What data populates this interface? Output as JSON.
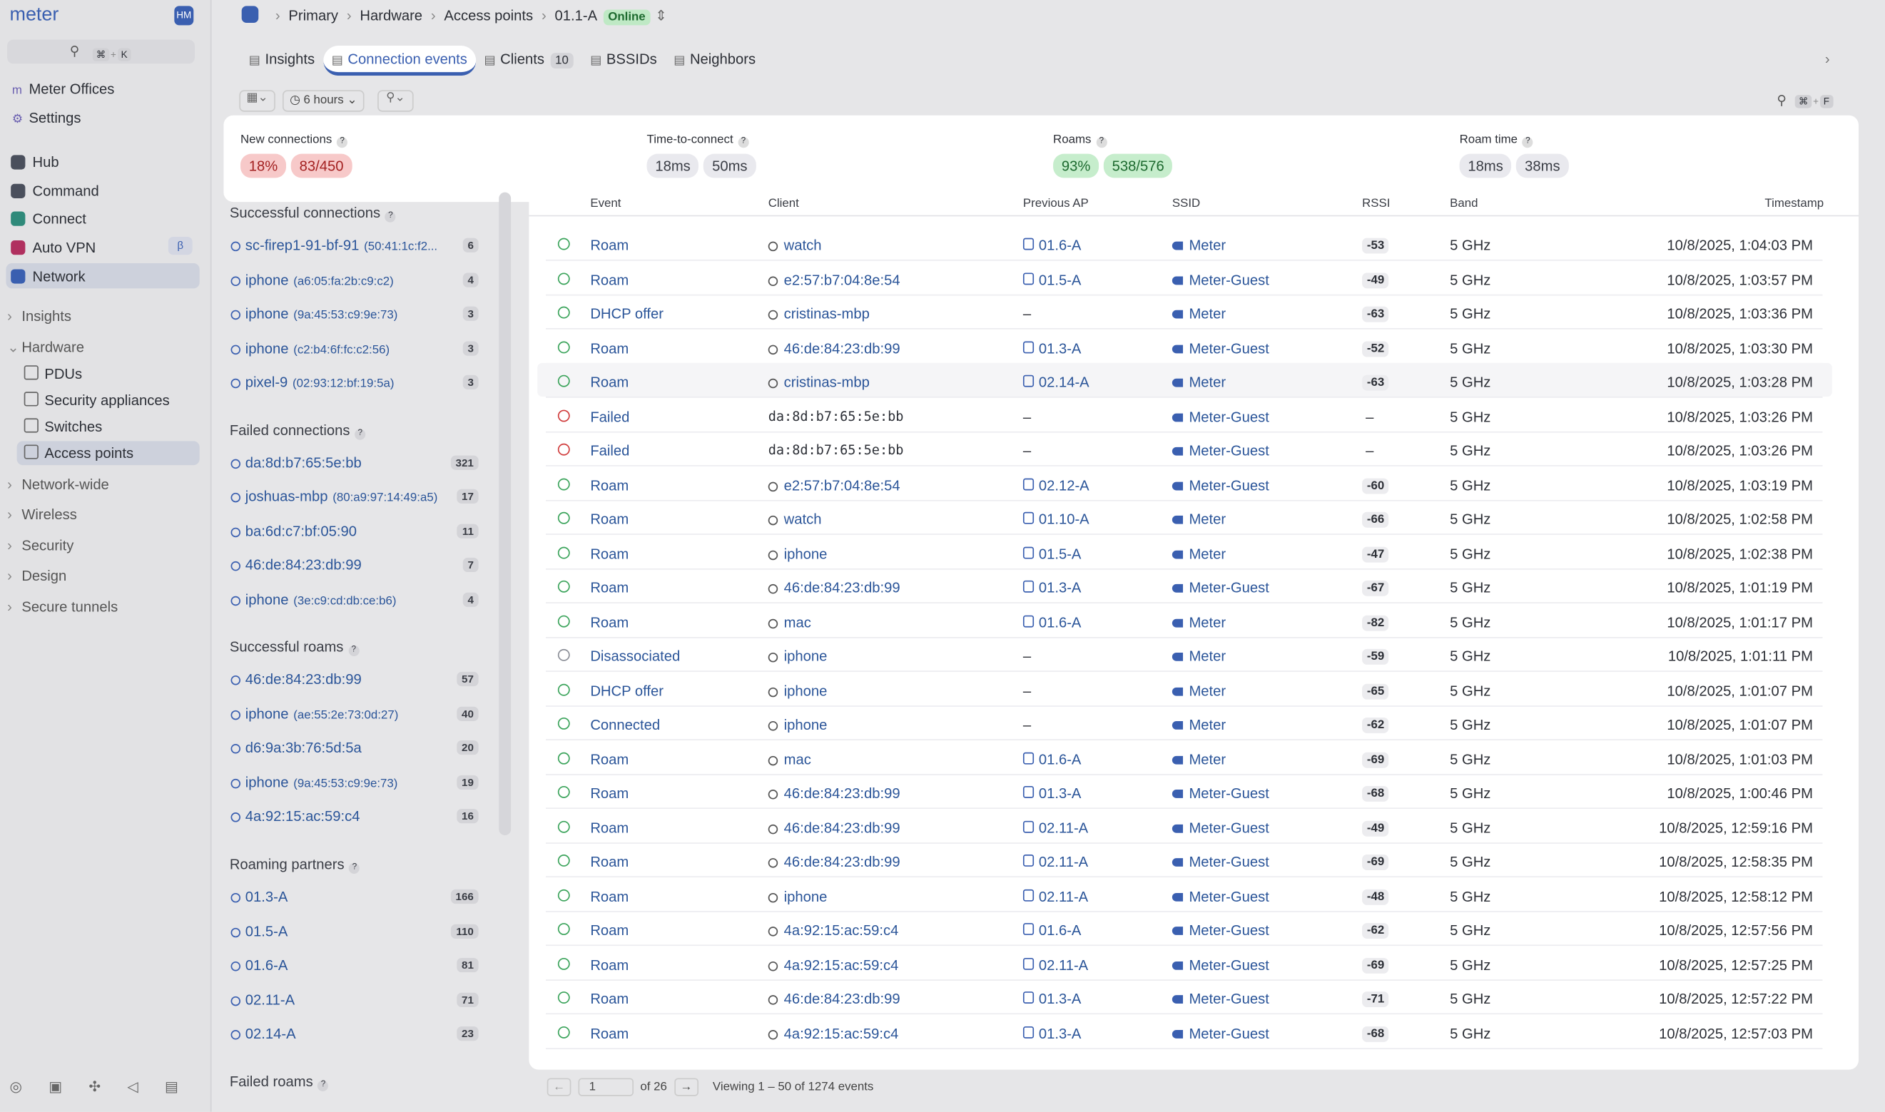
{
  "sidebar": {
    "brand": "meter",
    "avatar": "HM",
    "search_keys": [
      "⌘",
      "K"
    ],
    "top_items": [
      "Meter Offices",
      "Settings"
    ],
    "apps": [
      {
        "label": "Hub",
        "color": "#4a4f5c"
      },
      {
        "label": "Command",
        "color": "#4a4f5c"
      },
      {
        "label": "Connect",
        "color": "#2f8a7a"
      },
      {
        "label": "Auto VPN",
        "color": "#b0305f",
        "badge": "β"
      },
      {
        "label": "Network",
        "color": "#3a5fb0"
      }
    ],
    "sections": [
      {
        "label": "Insights",
        "children": []
      },
      {
        "label": "Hardware",
        "children": [
          "PDUs",
          "Security appliances",
          "Switches",
          "Access points"
        ]
      },
      {
        "label": "Network-wide",
        "children": []
      },
      {
        "label": "Wireless",
        "children": []
      },
      {
        "label": "Security",
        "children": []
      },
      {
        "label": "Design",
        "children": []
      },
      {
        "label": "Secure tunnels",
        "children": []
      }
    ]
  },
  "breadcrumb": {
    "items": [
      "Primary",
      "Hardware",
      "Access points"
    ],
    "device": "01.1-A",
    "status": "Online"
  },
  "tabs": [
    {
      "label": "Insights"
    },
    {
      "label": "Connection events"
    },
    {
      "label": "Clients",
      "count": "10"
    },
    {
      "label": "BSSIDs"
    },
    {
      "label": "Neighbors"
    }
  ],
  "filters": {
    "time": "6 hours",
    "search_keys": [
      "⌘",
      "F"
    ]
  },
  "stats": [
    {
      "label": "New connections",
      "tone": "red",
      "pills": [
        "18%",
        "83/450"
      ]
    },
    {
      "label": "Time-to-connect",
      "tone": "gray",
      "pills": [
        "18ms",
        "50ms"
      ]
    },
    {
      "label": "Roams",
      "tone": "green",
      "pills": [
        "93%",
        "538/576"
      ]
    },
    {
      "label": "Roam time",
      "tone": "gray",
      "pills": [
        "18ms",
        "38ms"
      ]
    }
  ],
  "panel": {
    "sections": [
      {
        "title": "Successful connections",
        "items": [
          {
            "name": "sc-firep1-91-bf-91",
            "detail": "(50:41:1c:f2...",
            "count": "6"
          },
          {
            "name": "iphone",
            "detail": "(a6:05:fa:2b:c9:c2)",
            "count": "4"
          },
          {
            "name": "iphone",
            "detail": "(9a:45:53:c9:9e:73)",
            "count": "3"
          },
          {
            "name": "iphone",
            "detail": "(c2:b4:6f:fc:c2:56)",
            "count": "3"
          },
          {
            "name": "pixel-9",
            "detail": "(02:93:12:bf:19:5a)",
            "count": "3"
          }
        ]
      },
      {
        "title": "Failed connections",
        "items": [
          {
            "name": "da:8d:b7:65:5e:bb",
            "detail": "",
            "count": "321"
          },
          {
            "name": "joshuas-mbp",
            "detail": "(80:a9:97:14:49:a5)",
            "count": "17"
          },
          {
            "name": "ba:6d:c7:bf:05:90",
            "detail": "",
            "count": "11"
          },
          {
            "name": "46:de:84:23:db:99",
            "detail": "",
            "count": "7"
          },
          {
            "name": "iphone",
            "detail": "(3e:c9:cd:db:ce:b6)",
            "count": "4"
          }
        ]
      },
      {
        "title": "Successful roams",
        "items": [
          {
            "name": "46:de:84:23:db:99",
            "detail": "",
            "count": "57"
          },
          {
            "name": "iphone",
            "detail": "(ae:55:2e:73:0d:27)",
            "count": "40"
          },
          {
            "name": "d6:9a:3b:76:5d:5a",
            "detail": "",
            "count": "20"
          },
          {
            "name": "iphone",
            "detail": "(9a:45:53:c9:9e:73)",
            "count": "19"
          },
          {
            "name": "4a:92:15:ac:59:c4",
            "detail": "",
            "count": "16"
          }
        ]
      },
      {
        "title": "Roaming partners",
        "items": [
          {
            "name": "01.3-A",
            "detail": "",
            "count": "166"
          },
          {
            "name": "01.5-A",
            "detail": "",
            "count": "110"
          },
          {
            "name": "01.6-A",
            "detail": "",
            "count": "81"
          },
          {
            "name": "02.11-A",
            "detail": "",
            "count": "71"
          },
          {
            "name": "02.14-A",
            "detail": "",
            "count": "23"
          }
        ]
      },
      {
        "title": "Failed roams",
        "items": []
      }
    ]
  },
  "table": {
    "headers": [
      "Event",
      "Client",
      "Previous AP",
      "SSID",
      "RSSI",
      "Band",
      "Timestamp"
    ],
    "rows": [
      {
        "color": "#3aa35a",
        "cells": [
          "Roam",
          "watch",
          "01.6-A",
          "Meter",
          "-53",
          "5 GHz",
          "10/8/2025, 1:04:03 PM"
        ]
      },
      {
        "color": "#3aa35a",
        "cells": [
          "Roam",
          "e2:57:b7:04:8e:54",
          "01.5-A",
          "Meter-Guest",
          "-49",
          "5 GHz",
          "10/8/2025, 1:03:57 PM"
        ]
      },
      {
        "color": "#3aa35a",
        "cells": [
          "DHCP offer",
          "cristinas-mbp",
          "–",
          "Meter",
          "-63",
          "5 GHz",
          "10/8/2025, 1:03:36 PM"
        ]
      },
      {
        "color": "#3aa35a",
        "cells": [
          "Roam",
          "46:de:84:23:db:99",
          "01.3-A",
          "Meter-Guest",
          "-52",
          "5 GHz",
          "10/8/2025, 1:03:30 PM"
        ]
      },
      {
        "color": "#3aa35a",
        "cells": [
          "Roam",
          "cristinas-mbp",
          "02.14-A",
          "Meter",
          "-63",
          "5 GHz",
          "10/8/2025, 1:03:28 PM"
        ]
      },
      {
        "color": "#d03b3b",
        "cells": [
          "Failed",
          "da:8d:b7:65:5e:bb",
          "–",
          "Meter-Guest",
          "–",
          "5 GHz",
          "10/8/2025, 1:03:26 PM"
        ]
      },
      {
        "color": "#d03b3b",
        "cells": [
          "Failed",
          "da:8d:b7:65:5e:bb",
          "–",
          "Meter-Guest",
          "–",
          "5 GHz",
          "10/8/2025, 1:03:26 PM"
        ]
      },
      {
        "color": "#3aa35a",
        "cells": [
          "Roam",
          "e2:57:b7:04:8e:54",
          "02.12-A",
          "Meter-Guest",
          "-60",
          "5 GHz",
          "10/8/2025, 1:03:19 PM"
        ]
      },
      {
        "color": "#3aa35a",
        "cells": [
          "Roam",
          "watch",
          "01.10-A",
          "Meter",
          "-66",
          "5 GHz",
          "10/8/2025, 1:02:58 PM"
        ]
      },
      {
        "color": "#3aa35a",
        "cells": [
          "Roam",
          "iphone",
          "01.5-A",
          "Meter",
          "-47",
          "5 GHz",
          "10/8/2025, 1:02:38 PM"
        ]
      },
      {
        "color": "#3aa35a",
        "cells": [
          "Roam",
          "46:de:84:23:db:99",
          "01.3-A",
          "Meter-Guest",
          "-67",
          "5 GHz",
          "10/8/2025, 1:01:19 PM"
        ]
      },
      {
        "color": "#3aa35a",
        "cells": [
          "Roam",
          "mac",
          "01.6-A",
          "Meter",
          "-82",
          "5 GHz",
          "10/8/2025, 1:01:17 PM"
        ]
      },
      {
        "color": "#8a8d96",
        "cells": [
          "Disassociated",
          "iphone",
          "–",
          "Meter",
          "-59",
          "5 GHz",
          "10/8/2025, 1:01:11 PM"
        ]
      },
      {
        "color": "#3aa35a",
        "cells": [
          "DHCP offer",
          "iphone",
          "–",
          "Meter",
          "-65",
          "5 GHz",
          "10/8/2025, 1:01:07 PM"
        ]
      },
      {
        "color": "#3aa35a",
        "cells": [
          "Connected",
          "iphone",
          "–",
          "Meter",
          "-62",
          "5 GHz",
          "10/8/2025, 1:01:07 PM"
        ]
      },
      {
        "color": "#3aa35a",
        "cells": [
          "Roam",
          "mac",
          "01.6-A",
          "Meter",
          "-69",
          "5 GHz",
          "10/8/2025, 1:01:03 PM"
        ]
      },
      {
        "color": "#3aa35a",
        "cells": [
          "Roam",
          "46:de:84:23:db:99",
          "01.3-A",
          "Meter-Guest",
          "-68",
          "5 GHz",
          "10/8/2025, 1:00:46 PM"
        ]
      },
      {
        "color": "#3aa35a",
        "cells": [
          "Roam",
          "46:de:84:23:db:99",
          "02.11-A",
          "Meter-Guest",
          "-49",
          "5 GHz",
          "10/8/2025, 12:59:16 PM"
        ]
      },
      {
        "color": "#3aa35a",
        "cells": [
          "Roam",
          "46:de:84:23:db:99",
          "02.11-A",
          "Meter-Guest",
          "-69",
          "5 GHz",
          "10/8/2025, 12:58:35 PM"
        ]
      },
      {
        "color": "#3aa35a",
        "cells": [
          "Roam",
          "iphone",
          "02.11-A",
          "Meter-Guest",
          "-48",
          "5 GHz",
          "10/8/2025, 12:58:12 PM"
        ]
      },
      {
        "color": "#3aa35a",
        "cells": [
          "Roam",
          "4a:92:15:ac:59:c4",
          "01.6-A",
          "Meter-Guest",
          "-62",
          "5 GHz",
          "10/8/2025, 12:57:56 PM"
        ]
      },
      {
        "color": "#3aa35a",
        "cells": [
          "Roam",
          "4a:92:15:ac:59:c4",
          "02.11-A",
          "Meter-Guest",
          "-69",
          "5 GHz",
          "10/8/2025, 12:57:25 PM"
        ]
      },
      {
        "color": "#3aa35a",
        "cells": [
          "Roam",
          "46:de:84:23:db:99",
          "01.3-A",
          "Meter-Guest",
          "-71",
          "5 GHz",
          "10/8/2025, 12:57:22 PM"
        ]
      },
      {
        "color": "#3aa35a",
        "cells": [
          "Roam",
          "4a:92:15:ac:59:c4",
          "01.3-A",
          "Meter-Guest",
          "-68",
          "5 GHz",
          "10/8/2025, 12:57:03 PM"
        ]
      }
    ]
  },
  "pagination": {
    "page": "1",
    "of": "of 26",
    "summary": "Viewing 1 – 50 of 1274 events"
  }
}
